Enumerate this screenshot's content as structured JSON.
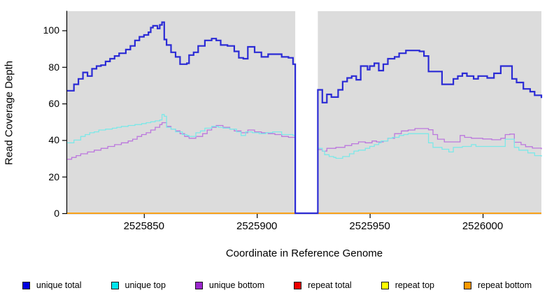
{
  "figure": {
    "background": "#ffffff",
    "plot_background": "#dcdcdc",
    "axis_color": "#000000"
  },
  "chart_data": {
    "type": "line",
    "subtype": "step",
    "title": "",
    "xlabel": "Coordinate in Reference Genome",
    "ylabel": "Read Coverage Depth",
    "xlim": [
      2525816,
      2526026
    ],
    "ylim": [
      0,
      110.5
    ],
    "x_ticks": [
      2525850,
      2525900,
      2525950,
      2526000
    ],
    "y_ticks": [
      0,
      20,
      40,
      60,
      80,
      100
    ],
    "grid": false,
    "legend_position": "bottom",
    "gap_region": {
      "start": 2525917,
      "end": 2525927,
      "color": "#ffffff",
      "note": "no-data white band, all unique series drop to 0"
    },
    "draw_order": [
      3,
      4,
      5,
      2,
      1,
      0
    ],
    "series": [
      {
        "name": "unique total",
        "line_color": "#2b2bd5",
        "legend_color": "#0000e0",
        "line_width": 2.2,
        "points": [
          [
            2525816,
            67
          ],
          [
            2525819,
            70.5
          ],
          [
            2525821,
            73.5
          ],
          [
            2525823,
            77
          ],
          [
            2525825,
            75
          ],
          [
            2525827,
            79
          ],
          [
            2525829,
            80.5
          ],
          [
            2525831,
            81
          ],
          [
            2525833,
            83
          ],
          [
            2525835,
            84.5
          ],
          [
            2525837,
            86
          ],
          [
            2525839,
            87.5
          ],
          [
            2525842,
            89.5
          ],
          [
            2525844,
            91.5
          ],
          [
            2525846,
            94.5
          ],
          [
            2525848,
            96.5
          ],
          [
            2525850,
            97.5
          ],
          [
            2525852,
            99
          ],
          [
            2525853,
            101.5
          ],
          [
            2525854,
            102.5
          ],
          [
            2525856,
            101
          ],
          [
            2525857,
            103
          ],
          [
            2525858,
            104.5
          ],
          [
            2525859,
            95
          ],
          [
            2525860,
            92
          ],
          [
            2525862,
            88
          ],
          [
            2525864,
            85.5
          ],
          [
            2525866,
            81.5
          ],
          [
            2525869,
            82
          ],
          [
            2525870,
            86.5
          ],
          [
            2525872,
            88
          ],
          [
            2525874,
            91.5
          ],
          [
            2525877,
            94.5
          ],
          [
            2525880,
            95.5
          ],
          [
            2525882,
            94.5
          ],
          [
            2525884,
            92
          ],
          [
            2525887,
            91.5
          ],
          [
            2525890,
            88.5
          ],
          [
            2525892,
            85
          ],
          [
            2525894,
            84.5
          ],
          [
            2525896,
            91
          ],
          [
            2525899,
            88
          ],
          [
            2525902,
            85.5
          ],
          [
            2525905,
            87
          ],
          [
            2525908,
            87
          ],
          [
            2525911,
            85.5
          ],
          [
            2525914,
            85
          ],
          [
            2525916,
            81.5
          ],
          [
            2525917,
            0
          ],
          [
            2525927,
            67.5
          ],
          [
            2525929,
            60.5
          ],
          [
            2525931,
            65
          ],
          [
            2525933,
            63.5
          ],
          [
            2525936,
            67.5
          ],
          [
            2525938,
            72
          ],
          [
            2525940,
            74
          ],
          [
            2525942,
            75
          ],
          [
            2525944,
            73
          ],
          [
            2525946,
            80.5
          ],
          [
            2525949,
            78.5
          ],
          [
            2525950,
            80.5
          ],
          [
            2525952,
            82
          ],
          [
            2525954,
            78
          ],
          [
            2525956,
            81.5
          ],
          [
            2525958,
            84.5
          ],
          [
            2525961,
            85.5
          ],
          [
            2525963,
            87.5
          ],
          [
            2525966,
            89
          ],
          [
            2525972,
            88.5
          ],
          [
            2525974,
            86
          ],
          [
            2525976,
            77.5
          ],
          [
            2525982,
            70.5
          ],
          [
            2525987,
            73.5
          ],
          [
            2525989,
            75
          ],
          [
            2525991,
            76.5
          ],
          [
            2525993,
            75
          ],
          [
            2525996,
            73.5
          ],
          [
            2525998,
            75
          ],
          [
            2526002,
            74
          ],
          [
            2526005,
            76.5
          ],
          [
            2526008,
            80.5
          ],
          [
            2526013,
            73.5
          ],
          [
            2526015,
            71.5
          ],
          [
            2526018,
            68
          ],
          [
            2526021,
            66.5
          ],
          [
            2526023,
            64.5
          ],
          [
            2526026,
            63
          ]
        ]
      },
      {
        "name": "unique top",
        "line_color": "#7ce8e8",
        "legend_color": "#00e5ee",
        "line_width": 1.3,
        "points": [
          [
            2525816,
            38.5
          ],
          [
            2525819,
            40
          ],
          [
            2525822,
            42
          ],
          [
            2525824,
            43
          ],
          [
            2525826,
            44
          ],
          [
            2525828,
            44.5
          ],
          [
            2525830,
            45.5
          ],
          [
            2525833,
            46
          ],
          [
            2525836,
            46.5
          ],
          [
            2525838,
            47
          ],
          [
            2525840,
            47.5
          ],
          [
            2525843,
            48
          ],
          [
            2525846,
            48.5
          ],
          [
            2525849,
            49
          ],
          [
            2525851,
            49.5
          ],
          [
            2525853,
            50
          ],
          [
            2525855,
            50.5
          ],
          [
            2525857,
            51
          ],
          [
            2525858,
            54
          ],
          [
            2525859,
            53
          ],
          [
            2525860,
            47
          ],
          [
            2525862,
            46
          ],
          [
            2525864,
            44.5
          ],
          [
            2525867,
            43
          ],
          [
            2525869,
            42.5
          ],
          [
            2525870,
            42
          ],
          [
            2525873,
            44
          ],
          [
            2525875,
            45
          ],
          [
            2525877,
            46.5
          ],
          [
            2525880,
            47.5
          ],
          [
            2525883,
            47
          ],
          [
            2525885,
            46.5
          ],
          [
            2525888,
            46
          ],
          [
            2525891,
            44.5
          ],
          [
            2525893,
            42.5
          ],
          [
            2525895,
            44.5
          ],
          [
            2525898,
            44
          ],
          [
            2525901,
            43.5
          ],
          [
            2525904,
            44
          ],
          [
            2525907,
            44.5
          ],
          [
            2525911,
            43
          ],
          [
            2525916,
            42.5
          ],
          [
            2525917,
            0
          ],
          [
            2525927,
            35.5
          ],
          [
            2525929,
            34
          ],
          [
            2525930,
            32
          ],
          [
            2525932,
            31
          ],
          [
            2525934,
            30.5
          ],
          [
            2525935,
            30
          ],
          [
            2525938,
            31
          ],
          [
            2525941,
            32.5
          ],
          [
            2525943,
            34
          ],
          [
            2525945,
            34.5
          ],
          [
            2525948,
            35.5
          ],
          [
            2525950,
            36.5
          ],
          [
            2525952,
            37.5
          ],
          [
            2525954,
            38.5
          ],
          [
            2525955,
            39.5
          ],
          [
            2525958,
            41
          ],
          [
            2525960,
            41.5
          ],
          [
            2525963,
            42.5
          ],
          [
            2525965,
            43
          ],
          [
            2525967,
            43.5
          ],
          [
            2525973,
            43.5
          ],
          [
            2525976,
            38.5
          ],
          [
            2525978,
            36
          ],
          [
            2525982,
            35
          ],
          [
            2525985,
            33.5
          ],
          [
            2525987,
            36
          ],
          [
            2525991,
            36.5
          ],
          [
            2525995,
            37.5
          ],
          [
            2525997,
            36.5
          ],
          [
            2526007,
            36.5
          ],
          [
            2526010,
            40.5
          ],
          [
            2526014,
            36
          ],
          [
            2526016,
            34.5
          ],
          [
            2526020,
            33
          ],
          [
            2526023,
            31.5
          ],
          [
            2526026,
            31
          ]
        ]
      },
      {
        "name": "unique bottom",
        "line_color": "#bb77dd",
        "legend_color": "#9c27ce",
        "line_width": 1.3,
        "points": [
          [
            2525816,
            29.5
          ],
          [
            2525818,
            30.5
          ],
          [
            2525820,
            31.5
          ],
          [
            2525822,
            32.5
          ],
          [
            2525825,
            33.5
          ],
          [
            2525828,
            34.5
          ],
          [
            2525831,
            35.5
          ],
          [
            2525834,
            36.5
          ],
          [
            2525837,
            37.5
          ],
          [
            2525840,
            38.5
          ],
          [
            2525843,
            39.5
          ],
          [
            2525845,
            40.5
          ],
          [
            2525847,
            42
          ],
          [
            2525849,
            43
          ],
          [
            2525851,
            44
          ],
          [
            2525853,
            45.5
          ],
          [
            2525855,
            47
          ],
          [
            2525857,
            48.5
          ],
          [
            2525858,
            49.5
          ],
          [
            2525860,
            47.5
          ],
          [
            2525862,
            46
          ],
          [
            2525864,
            45
          ],
          [
            2525866,
            43.5
          ],
          [
            2525868,
            42
          ],
          [
            2525870,
            41
          ],
          [
            2525873,
            42
          ],
          [
            2525876,
            43.5
          ],
          [
            2525878,
            45.5
          ],
          [
            2525880,
            47
          ],
          [
            2525882,
            48
          ],
          [
            2525885,
            47
          ],
          [
            2525888,
            46
          ],
          [
            2525890,
            45
          ],
          [
            2525893,
            44
          ],
          [
            2525896,
            45.5
          ],
          [
            2525899,
            44.5
          ],
          [
            2525902,
            44
          ],
          [
            2525905,
            43.5
          ],
          [
            2525908,
            43
          ],
          [
            2525911,
            42
          ],
          [
            2525914,
            41.5
          ],
          [
            2525917,
            0
          ],
          [
            2525927,
            34.8
          ],
          [
            2525929,
            34
          ],
          [
            2525931,
            35.5
          ],
          [
            2525935,
            36
          ],
          [
            2525939,
            37
          ],
          [
            2525942,
            38
          ],
          [
            2525945,
            39
          ],
          [
            2525948,
            38.5
          ],
          [
            2525951,
            39.5
          ],
          [
            2525953,
            39
          ],
          [
            2525956,
            39.5
          ],
          [
            2525958,
            41
          ],
          [
            2525961,
            43.5
          ],
          [
            2525964,
            45
          ],
          [
            2525967,
            45.5
          ],
          [
            2525970,
            46.3
          ],
          [
            2525976,
            45.6
          ],
          [
            2525978,
            43
          ],
          [
            2525980,
            40.5
          ],
          [
            2525983,
            39
          ],
          [
            2525990,
            42.5
          ],
          [
            2525992,
            41.5
          ],
          [
            2525995,
            41
          ],
          [
            2526000,
            40.6
          ],
          [
            2526004,
            40.2
          ],
          [
            2526008,
            41
          ],
          [
            2526010,
            43
          ],
          [
            2526012,
            43.3
          ],
          [
            2526014,
            38.8
          ],
          [
            2526017,
            37.5
          ],
          [
            2526019,
            36.4
          ],
          [
            2526022,
            35.6
          ],
          [
            2526026,
            35
          ]
        ]
      },
      {
        "name": "repeat total",
        "line_color": "#dd0000",
        "legend_color": "#ee0000",
        "line_width": 1.5,
        "points": [
          [
            2525816,
            0
          ]
        ]
      },
      {
        "name": "repeat top",
        "line_color": "#ffff00",
        "legend_color": "#ffff00",
        "line_width": 1.5,
        "points": [
          [
            2525816,
            0
          ]
        ]
      },
      {
        "name": "repeat bottom",
        "line_color": "#ffa319",
        "legend_color": "#ff9900",
        "line_width": 1.8,
        "points": [
          [
            2525816,
            0
          ]
        ]
      }
    ]
  }
}
